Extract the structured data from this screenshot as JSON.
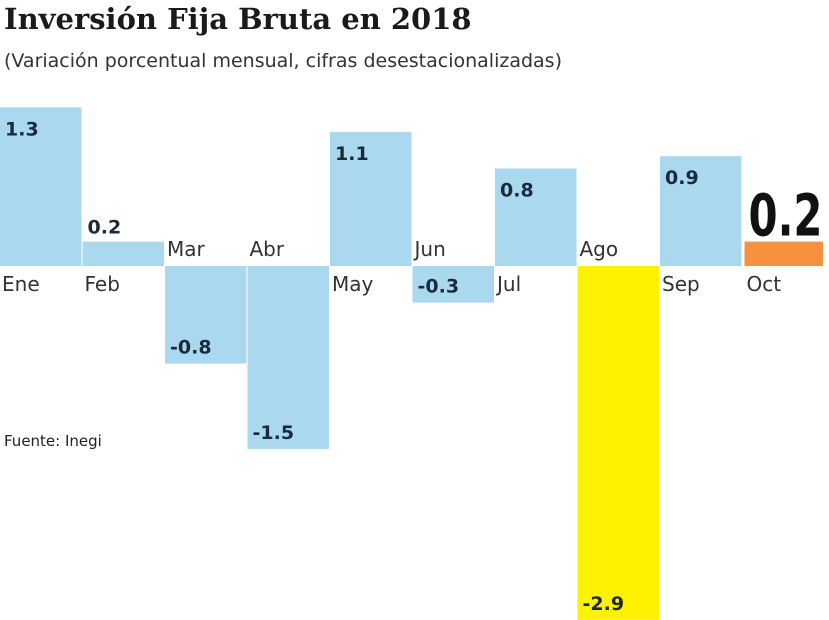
{
  "chart_data": {
    "type": "bar",
    "title": "Inversión Fija Bruta en 2018",
    "subtitle": "(Variación porcentual mensual, cifras desestacionalizadas)",
    "source": "Fuente: Inegi",
    "categories": [
      "Ene",
      "Feb",
      "Mar",
      "Abr",
      "May",
      "Jun",
      "Jul",
      "Ago",
      "Sep",
      "Oct"
    ],
    "values": [
      1.3,
      0.2,
      -0.8,
      -1.5,
      1.1,
      -0.3,
      0.8,
      -2.9,
      0.9,
      0.2
    ],
    "value_labels": [
      "1.3",
      "0.2",
      "-0.8",
      "-1.5",
      "1.1",
      "-0.3",
      "0.8",
      "-2.9",
      "0.9",
      "0.2"
    ],
    "colors": {
      "default": "#a9d8ef",
      "highlight_min": "#fff200",
      "latest": "#f6923f"
    },
    "ylim": [
      -2.9,
      1.3
    ],
    "grid": false,
    "legend": "none"
  }
}
